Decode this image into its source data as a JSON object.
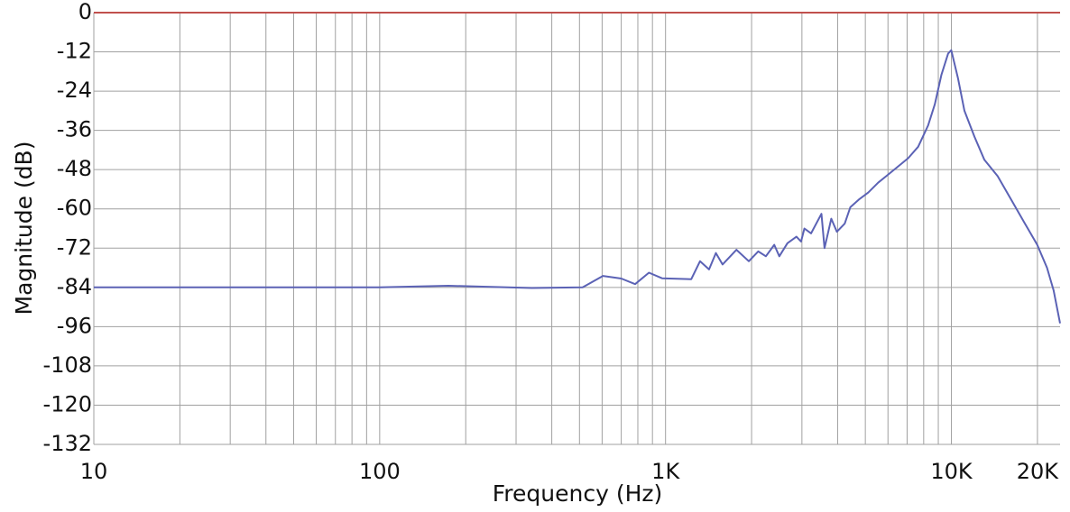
{
  "chart_data": {
    "type": "line",
    "x_label": "Frequency (Hz)",
    "y_label": "Magnitude (dB)",
    "x_scale": "log",
    "xlim": [
      10,
      24000
    ],
    "ylim": [
      -132,
      0
    ],
    "xticks": [
      10,
      100,
      {
        "value": 1000,
        "label": "1K"
      },
      {
        "value": 10000,
        "label": "10K"
      },
      {
        "value": 20000,
        "label": "20K"
      }
    ],
    "xminorticks": [
      20,
      30,
      40,
      50,
      60,
      70,
      80,
      90,
      200,
      300,
      400,
      500,
      600,
      700,
      800,
      900,
      2000,
      3000,
      4000,
      5000,
      6000,
      7000,
      8000,
      9000
    ],
    "yticks": [
      0,
      -12,
      -24,
      -36,
      -48,
      -60,
      -72,
      -84,
      -96,
      -108,
      -120,
      -132
    ],
    "grid": true,
    "grid_color": "#a0a0a0",
    "zero_line_color": "#c0504d",
    "x": [
      10,
      100,
      174,
      341,
      513,
      604,
      700,
      783,
      875,
      972,
      1230,
      1320,
      1420,
      1500,
      1583,
      1770,
      1956,
      2110,
      2244,
      2400,
      2500,
      2670,
      2870,
      2980,
      3060,
      3230,
      3510,
      3600,
      3800,
      3975,
      4235,
      4430,
      4770,
      5120,
      5540,
      6010,
      6510,
      7060,
      7650,
      8290,
      8750,
      9230,
      9740,
      9990,
      10540,
      11110,
      12050,
      13040,
      14510,
      16140,
      17950,
      19970,
      21600,
      22790,
      24000
    ],
    "series": [
      {
        "color": "#5b62b5",
        "values": [
          -84,
          -84,
          -83.5,
          -84.2,
          -84,
          -80.5,
          -81.3,
          -83,
          -79.5,
          -81.2,
          -81.5,
          -76,
          -78.5,
          -73.5,
          -77,
          -72.5,
          -76,
          -73,
          -74.5,
          -71,
          -74.5,
          -70.5,
          -68.5,
          -70,
          -66,
          -67.5,
          -61.5,
          -72,
          -63,
          -67,
          -64.5,
          -59.5,
          -57,
          -55,
          -52,
          -49.5,
          -47,
          -44.5,
          -41,
          -34.5,
          -28,
          -19,
          -12.5,
          -11.5,
          -20,
          -30,
          -38,
          -45,
          -50,
          -57,
          -64,
          -71,
          -78,
          -85,
          -95
        ]
      }
    ]
  }
}
